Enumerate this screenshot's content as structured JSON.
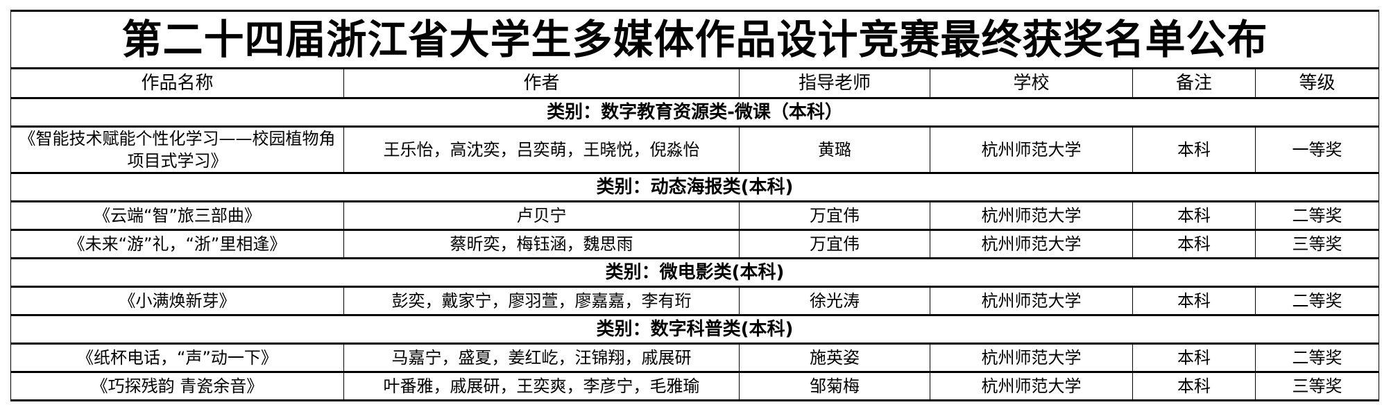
{
  "title": "第二十四届浙江省大学生多媒体作品设计竞赛最终获奖名单公布",
  "headers": [
    "作品名称",
    "作者",
    "指导老师",
    "学校",
    "备注",
    "等级"
  ],
  "sections": [
    {
      "category": "类别：数字教育资源类-微课（本科）",
      "rows": [
        {
          "work": "《智能技术赋能个性化学习——校园植物角项目式学习》",
          "authors": "王乐怡，高沈奕，吕奕萌，王晓悦，倪淼怡",
          "advisor": "黄璐",
          "school": "杭州师范大学",
          "note": "本科",
          "level": "一等奖"
        }
      ]
    },
    {
      "category": "类别：动态海报类(本科)",
      "rows": [
        {
          "work": "《云端“智”旅三部曲》",
          "authors": "卢贝宁",
          "advisor": "万宜伟",
          "school": "杭州师范大学",
          "note": "本科",
          "level": "二等奖"
        },
        {
          "work": "《未来“游”礼，“浙”里相逢》",
          "authors": "蔡昕奕，梅钰涵，魏思雨",
          "advisor": "万宜伟",
          "school": "杭州师范大学",
          "note": "本科",
          "level": "三等奖"
        }
      ]
    },
    {
      "category": "类别：微电影类(本科)",
      "rows": [
        {
          "work": "《小满焕新芽》",
          "authors": "彭奕，戴家宁，廖羽萱，廖嘉嘉，李有珩",
          "advisor": "徐光涛",
          "school": "杭州师范大学",
          "note": "本科",
          "level": "二等奖"
        }
      ]
    },
    {
      "category": "类别：数字科普类(本科)",
      "rows": [
        {
          "work": "《纸杯电话，“声”动一下》",
          "authors": "马嘉宁，盛夏，姜红屹，汪锦翔，戚展研",
          "advisor": "施英姿",
          "school": "杭州师范大学",
          "note": "本科",
          "level": "二等奖"
        },
        {
          "work": "《巧探残韵 青瓷余音》",
          "authors": "叶番雅，戚展研，王奕爽，李彦宁，毛雅瑜",
          "advisor": "邹菊梅",
          "school": "杭州师范大学",
          "note": "本科",
          "level": "三等奖"
        }
      ]
    }
  ]
}
